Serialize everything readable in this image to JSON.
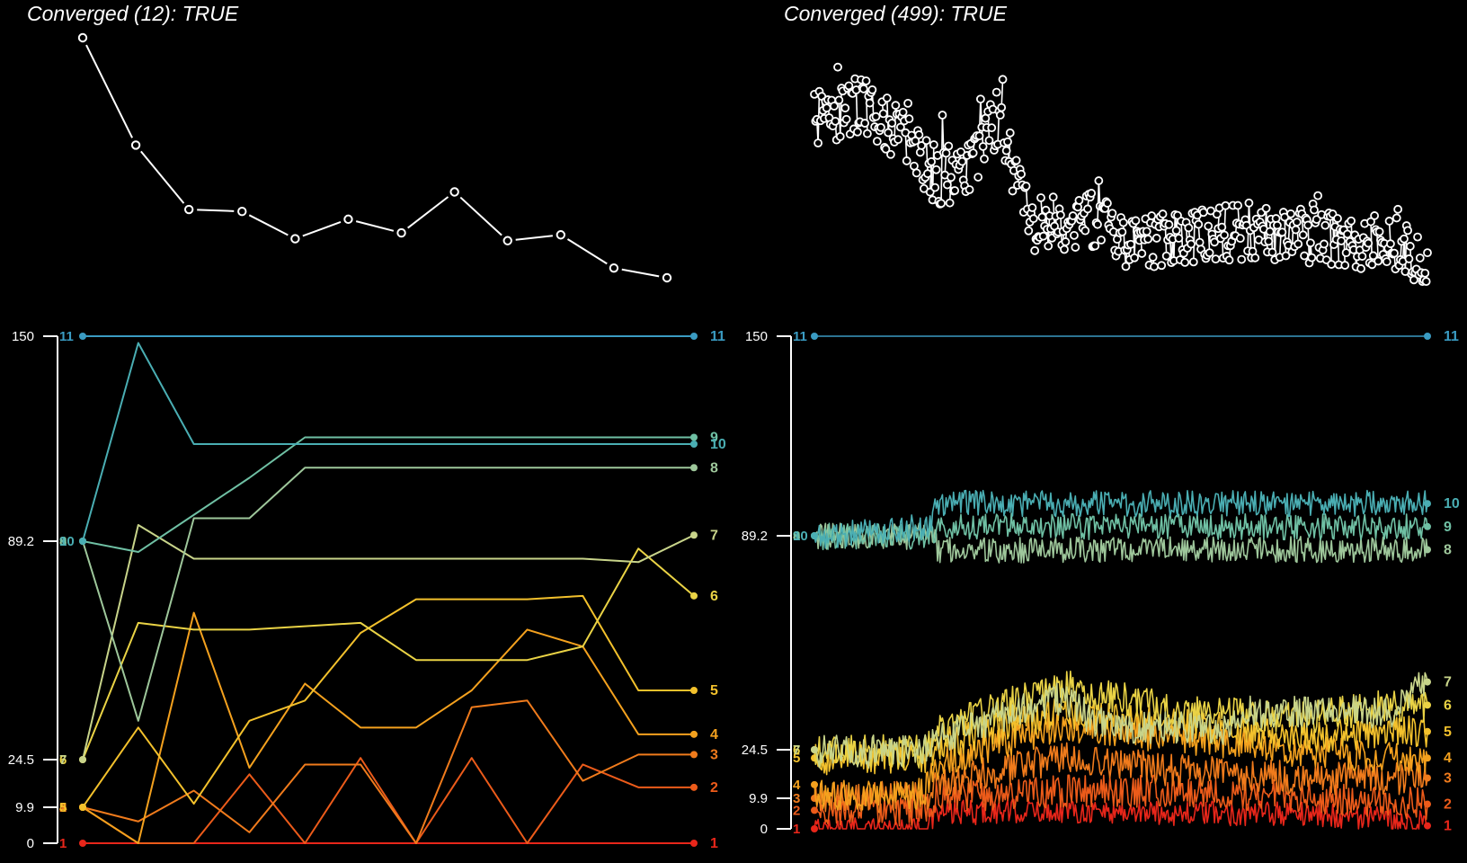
{
  "colors": {
    "background": "#000000",
    "foreground": "#ffffff",
    "lines": {
      "1": "#e8261a",
      "2": "#ec5b1a",
      "3": "#f07b1c",
      "4": "#f4a11e",
      "5": "#f3c12c",
      "6": "#ead345",
      "7": "#c8d48a",
      "8": "#9ec79b",
      "9": "#6fc0a4",
      "10": "#4aaeb3",
      "11": "#3a9bc2"
    }
  },
  "chart_data": [
    {
      "id": "convergence-left",
      "type": "line",
      "title": "Converged (12): TRUE",
      "x": [
        1,
        2,
        3,
        4,
        5,
        6,
        7,
        8,
        9,
        10,
        11,
        12
      ],
      "values": [
        150,
        95,
        62,
        61,
        47,
        57,
        50,
        71,
        46,
        49,
        32,
        27
      ],
      "markers": "open-circle",
      "axes": "none"
    },
    {
      "id": "convergence-right",
      "type": "scatter",
      "title": "Converged (499): TRUE",
      "x_count": 499,
      "value_profile": [
        [
          1,
          105
        ],
        [
          40,
          115
        ],
        [
          80,
          92
        ],
        [
          100,
          72
        ],
        [
          130,
          80
        ],
        [
          150,
          107
        ],
        [
          165,
          70
        ],
        [
          180,
          48
        ],
        [
          230,
          52
        ],
        [
          250,
          38
        ],
        [
          300,
          42
        ],
        [
          350,
          45
        ],
        [
          400,
          43
        ],
        [
          440,
          38
        ],
        [
          470,
          40
        ],
        [
          485,
          35
        ],
        [
          499,
          20
        ]
      ],
      "markers": "open-circle-with-vertical-lines",
      "axes": "none"
    },
    {
      "id": "trajectories-left",
      "type": "line",
      "y_ticks": [
        0,
        9.9,
        24.5,
        89.2,
        150
      ],
      "ylim": [
        0,
        150
      ],
      "x": [
        1,
        2,
        3,
        4,
        5,
        6,
        7,
        8,
        9,
        10,
        11,
        12
      ],
      "series": [
        {
          "name": "1",
          "values": [
            0,
            0,
            0,
            0,
            0,
            0,
            0,
            0,
            0,
            0,
            0,
            0
          ]
        },
        {
          "name": "2",
          "values": [
            9.9,
            0,
            0,
            20,
            0,
            25,
            0,
            25,
            0,
            23,
            16,
            16
          ]
        },
        {
          "name": "3",
          "values": [
            9.9,
            6,
            15,
            3,
            23,
            23,
            0,
            40,
            42,
            18,
            26,
            26
          ]
        },
        {
          "name": "4",
          "values": [
            9.9,
            0,
            68,
            22,
            47,
            34,
            34,
            45,
            63,
            58,
            32,
            32
          ]
        },
        {
          "name": "5",
          "values": [
            9.9,
            34,
            11,
            36,
            42,
            62,
            72,
            72,
            72,
            73,
            45,
            45
          ]
        },
        {
          "name": "6",
          "values": [
            24.5,
            65,
            63,
            63,
            64,
            65,
            54,
            54,
            54,
            58,
            87,
            73
          ]
        },
        {
          "name": "7",
          "values": [
            24.5,
            94,
            84,
            84,
            84,
            84,
            84,
            84,
            84,
            84,
            83,
            91
          ]
        },
        {
          "name": "8",
          "values": [
            89.2,
            36,
            96,
            96,
            111,
            111,
            111,
            111,
            111,
            111,
            111,
            111
          ]
        },
        {
          "name": "9",
          "values": [
            89.2,
            86,
            97,
            108,
            120,
            120,
            120,
            120,
            120,
            120,
            120,
            120
          ]
        },
        {
          "name": "10",
          "values": [
            89.2,
            148,
            118,
            118,
            118,
            118,
            118,
            118,
            118,
            118,
            118,
            118
          ]
        },
        {
          "name": "11",
          "values": [
            150,
            150,
            150,
            150,
            150,
            150,
            150,
            150,
            150,
            150,
            150,
            150
          ]
        }
      ],
      "left_labels": [
        "1",
        "2",
        "3",
        "4",
        "5",
        "6",
        "7",
        "8",
        "9",
        "10",
        "11"
      ],
      "right_labels": [
        "1",
        "2",
        "3",
        "4",
        "5",
        "6",
        "7",
        "8",
        "9",
        "10",
        "11"
      ]
    },
    {
      "id": "trajectories-right",
      "type": "line",
      "y_ticks": [
        0,
        9.9,
        24.5,
        89.2,
        150
      ],
      "ylim": [
        0,
        150
      ],
      "x_count": 499,
      "series": [
        {
          "name": "1",
          "start": 0,
          "profile": [
            [
              1,
              0
            ],
            [
              90,
              0
            ],
            [
              100,
              5
            ],
            [
              200,
              6
            ],
            [
              300,
              5
            ],
            [
              400,
              5
            ],
            [
              499,
              2
            ]
          ],
          "noise": 4,
          "end": 1
        },
        {
          "name": "2",
          "start": 6,
          "profile": [
            [
              1,
              6
            ],
            [
              90,
              6
            ],
            [
              100,
              10
            ],
            [
              200,
              12
            ],
            [
              300,
              12
            ],
            [
              400,
              10
            ],
            [
              499,
              8
            ]
          ],
          "noise": 5,
          "end": 8
        },
        {
          "name": "3",
          "start": 9.9,
          "profile": [
            [
              1,
              10
            ],
            [
              90,
              10
            ],
            [
              100,
              14
            ],
            [
              200,
              22
            ],
            [
              300,
              18
            ],
            [
              400,
              16
            ],
            [
              499,
              16
            ]
          ],
          "noise": 5,
          "end": 16
        },
        {
          "name": "4",
          "start": 14,
          "profile": [
            [
              1,
              11
            ],
            [
              90,
              11
            ],
            [
              100,
              20
            ],
            [
              200,
              32
            ],
            [
              300,
              28
            ],
            [
              400,
              24
            ],
            [
              470,
              22
            ],
            [
              499,
              22
            ]
          ],
          "noise": 5,
          "end": 22
        },
        {
          "name": "5",
          "start": 22,
          "profile": [
            [
              1,
              22
            ],
            [
              90,
              22
            ],
            [
              100,
              26
            ],
            [
              200,
              36
            ],
            [
              300,
              32
            ],
            [
              400,
              28
            ],
            [
              470,
              30
            ],
            [
              499,
              30
            ]
          ],
          "noise": 5,
          "end": 30
        },
        {
          "name": "6",
          "start": 24.5,
          "profile": [
            [
              1,
              24
            ],
            [
              90,
              24
            ],
            [
              100,
              30
            ],
            [
              200,
              44
            ],
            [
              300,
              36
            ],
            [
              400,
              34
            ],
            [
              470,
              38
            ],
            [
              499,
              38
            ]
          ],
          "noise": 5,
          "end": 38
        },
        {
          "name": "7",
          "start": 24.5,
          "profile": [
            [
              1,
              24
            ],
            [
              90,
              24
            ],
            [
              100,
              28
            ],
            [
              200,
              40
            ],
            [
              240,
              31
            ],
            [
              340,
              31
            ],
            [
              345,
              36
            ],
            [
              470,
              36
            ],
            [
              499,
              45
            ]
          ],
          "noise": 5,
          "end": 45
        },
        {
          "name": "8",
          "start": 89.2,
          "profile": [
            [
              1,
              89
            ],
            [
              100,
              89
            ],
            [
              101,
              85
            ],
            [
              499,
              85
            ]
          ],
          "noise": 4,
          "end": 85
        },
        {
          "name": "9",
          "start": 89.2,
          "profile": [
            [
              1,
              89
            ],
            [
              100,
              89
            ],
            [
              101,
              92
            ],
            [
              499,
              92
            ]
          ],
          "noise": 4,
          "end": 92
        },
        {
          "name": "10",
          "start": 89.2,
          "profile": [
            [
              1,
              89
            ],
            [
              95,
              92
            ],
            [
              100,
              100
            ],
            [
              101,
              99
            ],
            [
              499,
              99
            ]
          ],
          "noise": 4,
          "end": 99
        },
        {
          "name": "11",
          "start": 150,
          "profile": [
            [
              1,
              150
            ],
            [
              499,
              150
            ]
          ],
          "noise": 0,
          "end": 150
        }
      ],
      "left_labels": [
        "1",
        "2",
        "3",
        "4",
        "5",
        "6",
        "7",
        "8",
        "9",
        "10",
        "11"
      ],
      "right_labels": [
        "1",
        "2",
        "3",
        "4",
        "5",
        "6",
        "7",
        "8",
        "9",
        "10",
        "11"
      ]
    }
  ]
}
